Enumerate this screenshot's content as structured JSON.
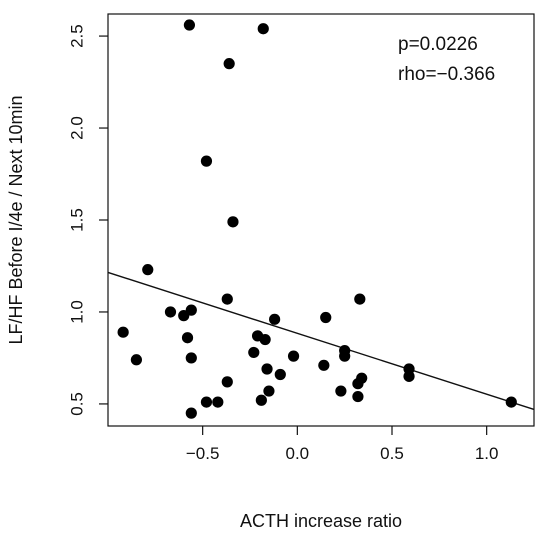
{
  "chart_data": {
    "type": "scatter",
    "title": "",
    "xlabel": "ACTH increase ratio",
    "ylabel": "LF/HF Before I/4e / Next 10min",
    "xlim": [
      -1.0,
      1.25
    ],
    "ylim": [
      0.38,
      2.62
    ],
    "xticks": [
      -0.5,
      0.0,
      0.5,
      1.0
    ],
    "xtick_labels": [
      "−0.5",
      "0.0",
      "0.5",
      "1.0"
    ],
    "yticks": [
      0.5,
      1.0,
      1.5,
      2.0,
      2.5
    ],
    "ytick_labels": [
      "0.5",
      "1.0",
      "1.5",
      "2.0",
      "2.5"
    ],
    "grid": false,
    "annotations": [
      "p=0.0226",
      "rho=−0.366"
    ],
    "regression_line": {
      "x": [
        -1.0,
        1.25
      ],
      "y": [
        1.215,
        0.47
      ]
    },
    "points": [
      {
        "x": -0.57,
        "y": 2.56
      },
      {
        "x": -0.18,
        "y": 2.54
      },
      {
        "x": -0.36,
        "y": 2.35
      },
      {
        "x": -0.48,
        "y": 1.82
      },
      {
        "x": -0.34,
        "y": 1.49
      },
      {
        "x": -0.79,
        "y": 1.23
      },
      {
        "x": -0.37,
        "y": 1.07
      },
      {
        "x": 0.33,
        "y": 1.07
      },
      {
        "x": -0.56,
        "y": 1.01
      },
      {
        "x": -0.67,
        "y": 1.0
      },
      {
        "x": -0.6,
        "y": 0.98
      },
      {
        "x": 0.15,
        "y": 0.97
      },
      {
        "x": -0.12,
        "y": 0.96
      },
      {
        "x": -0.92,
        "y": 0.89
      },
      {
        "x": -0.21,
        "y": 0.87
      },
      {
        "x": -0.58,
        "y": 0.86
      },
      {
        "x": -0.17,
        "y": 0.85
      },
      {
        "x": 0.25,
        "y": 0.79
      },
      {
        "x": -0.23,
        "y": 0.78
      },
      {
        "x": 0.25,
        "y": 0.76
      },
      {
        "x": -0.02,
        "y": 0.76
      },
      {
        "x": -0.56,
        "y": 0.75
      },
      {
        "x": -0.85,
        "y": 0.74
      },
      {
        "x": 0.14,
        "y": 0.71
      },
      {
        "x": -0.16,
        "y": 0.69
      },
      {
        "x": 0.59,
        "y": 0.69
      },
      {
        "x": -0.09,
        "y": 0.66
      },
      {
        "x": 0.59,
        "y": 0.65
      },
      {
        "x": 0.34,
        "y": 0.64
      },
      {
        "x": -0.37,
        "y": 0.62
      },
      {
        "x": 0.32,
        "y": 0.61
      },
      {
        "x": -0.15,
        "y": 0.57
      },
      {
        "x": 0.23,
        "y": 0.57
      },
      {
        "x": 0.32,
        "y": 0.54
      },
      {
        "x": -0.19,
        "y": 0.52
      },
      {
        "x": -0.48,
        "y": 0.51
      },
      {
        "x": -0.42,
        "y": 0.51
      },
      {
        "x": 1.13,
        "y": 0.51
      },
      {
        "x": -0.56,
        "y": 0.45
      }
    ]
  }
}
